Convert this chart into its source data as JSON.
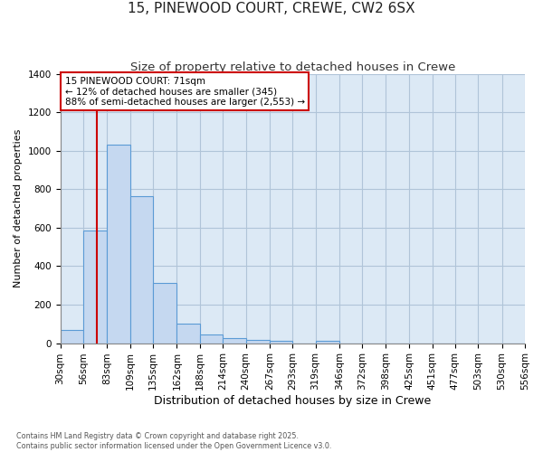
{
  "title": "15, PINEWOOD COURT, CREWE, CW2 6SX",
  "subtitle": "Size of property relative to detached houses in Crewe",
  "xlabel": "Distribution of detached houses by size in Crewe",
  "ylabel": "Number of detached properties",
  "bin_edges": [
    30,
    56,
    83,
    109,
    135,
    162,
    188,
    214,
    240,
    267,
    293,
    319,
    346,
    372,
    398,
    425,
    451,
    477,
    503,
    530,
    556
  ],
  "bar_heights": [
    70,
    585,
    1030,
    765,
    315,
    100,
    45,
    25,
    15,
    10,
    0,
    10,
    0,
    0,
    0,
    0,
    0,
    0,
    0,
    0
  ],
  "bar_facecolor": "#c5d8f0",
  "bar_edgecolor": "#5b9bd5",
  "background_color": "#dce9f5",
  "grid_color": "#b0c4d8",
  "property_size": 71,
  "annotation_title": "15 PINEWOOD COURT: 71sqm",
  "annotation_line1": "← 12% of detached houses are smaller (345)",
  "annotation_line2": "88% of semi-detached houses are larger (2,553) →",
  "annotation_box_color": "#cc0000",
  "vline_color": "#cc0000",
  "ylim": [
    0,
    1400
  ],
  "yticks": [
    0,
    200,
    400,
    600,
    800,
    1000,
    1200,
    1400
  ],
  "footer_line1": "Contains HM Land Registry data © Crown copyright and database right 2025.",
  "footer_line2": "Contains public sector information licensed under the Open Government Licence v3.0.",
  "title_fontsize": 11,
  "subtitle_fontsize": 9.5,
  "axis_label_fontsize": 8,
  "xlabel_fontsize": 9,
  "tick_fontsize": 7.5,
  "annotation_fontsize": 7.5,
  "fig_facecolor": "#ffffff"
}
